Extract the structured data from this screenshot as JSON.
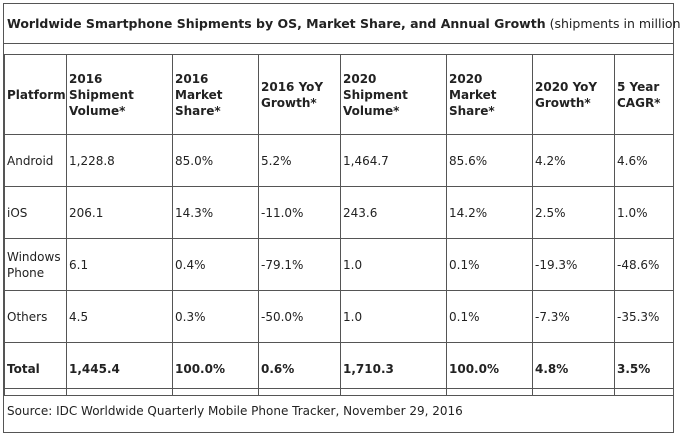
{
  "title": {
    "bold": "Worldwide Smartphone Shipments by OS, Market Share, and Annual Growth",
    "note": "(shipments in millions)"
  },
  "columns": [
    "Platform",
    "2016 Shipment Volume*",
    "2016 Market Share*",
    "2016 YoY Growth*",
    "2020 Shipment Volume*",
    "2020 Market Share*",
    "2020 YoY Growth*",
    "5 Year CAGR*"
  ],
  "rows": [
    [
      "Android",
      "1,228.8",
      "85.0%",
      "5.2%",
      "1,464.7",
      "85.6%",
      "4.2%",
      "4.6%"
    ],
    [
      "iOS",
      "206.1",
      "14.3%",
      "-11.0%",
      "243.6",
      "14.2%",
      "2.5%",
      "1.0%"
    ],
    [
      "Windows Phone",
      "6.1",
      "0.4%",
      "-79.1%",
      "1.0",
      "0.1%",
      "-19.3%",
      "-48.6%"
    ],
    [
      "Others",
      "4.5",
      "0.3%",
      "-50.0%",
      "1.0",
      "0.1%",
      "-7.3%",
      "-35.3%"
    ]
  ],
  "total": [
    "Total",
    "1,445.4",
    "100.0%",
    "0.6%",
    "1,710.3",
    "100.0%",
    "4.8%",
    "3.5%"
  ],
  "source": "Source: IDC Worldwide Quarterly Mobile Phone Tracker, November 29, 2016"
}
